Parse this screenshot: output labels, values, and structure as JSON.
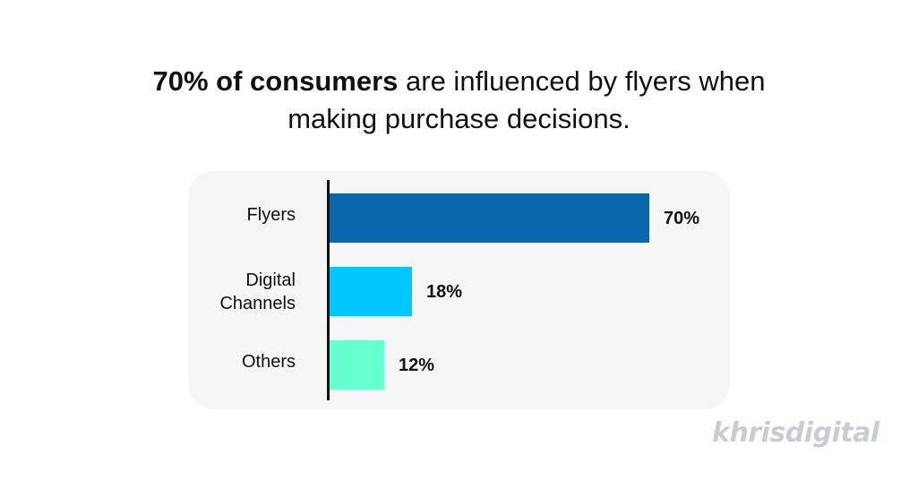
{
  "title": {
    "bold": "70% of consumers",
    "rest_line1": " are influenced by flyers when",
    "line2": "making purchase decisions."
  },
  "chart_data": {
    "type": "bar",
    "orientation": "horizontal",
    "categories": [
      "Flyers",
      "Digital Channels",
      "Others"
    ],
    "values": [
      70,
      18,
      12
    ],
    "value_labels": [
      "70%",
      "18%",
      "12%"
    ],
    "colors": [
      "#0b66ab",
      "#00c8ff",
      "#66ffcf"
    ],
    "xlim": [
      0,
      70
    ],
    "grid": false,
    "legend": "none"
  },
  "logo": {
    "text": "khrisdigital"
  }
}
